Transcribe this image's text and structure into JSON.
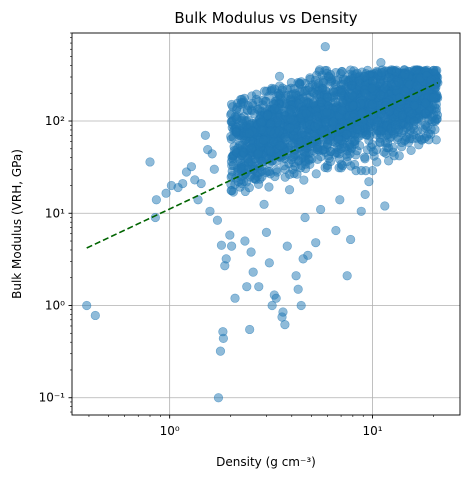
{
  "chart_data": {
    "type": "scatter",
    "title": "Bulk Modulus vs Density",
    "xlabel": "Density (g cm⁻³)",
    "ylabel": "Bulk Modulus (VRH, GPa)",
    "xscale": "log",
    "yscale": "log",
    "xlim": [
      0.33,
      27
    ],
    "ylim": [
      0.065,
      900
    ],
    "grid": true,
    "x_ticks": [
      {
        "value": 1,
        "label": "10⁰"
      },
      {
        "value": 10,
        "label": "10¹"
      }
    ],
    "y_ticks": [
      {
        "value": 0.1,
        "label": "10⁻¹"
      },
      {
        "value": 1,
        "label": "10⁰"
      },
      {
        "value": 10,
        "label": "10¹"
      },
      {
        "value": 100,
        "label": "10²"
      }
    ],
    "colors": {
      "points": "#1f77b4",
      "fit_line": "#006400",
      "grid": "#b0b0b0"
    },
    "scatter_points": [
      [
        0.39,
        1.0
      ],
      [
        0.43,
        0.78
      ],
      [
        0.8,
        36
      ],
      [
        0.86,
        14
      ],
      [
        0.85,
        9.0
      ],
      [
        0.96,
        16.5
      ],
      [
        1.02,
        20
      ],
      [
        1.1,
        19
      ],
      [
        1.16,
        21
      ],
      [
        1.21,
        28
      ],
      [
        1.28,
        32
      ],
      [
        1.33,
        23
      ],
      [
        1.38,
        14
      ],
      [
        1.43,
        21
      ],
      [
        1.5,
        70
      ],
      [
        1.54,
        49
      ],
      [
        1.58,
        10.5
      ],
      [
        1.62,
        44
      ],
      [
        1.66,
        30
      ],
      [
        1.72,
        8.4
      ],
      [
        1.78,
        0.32
      ],
      [
        1.8,
        4.5
      ],
      [
        1.83,
        0.52
      ],
      [
        1.84,
        0.44
      ],
      [
        1.87,
        2.7
      ],
      [
        1.9,
        3.2
      ],
      [
        1.74,
        0.1
      ],
      [
        1.98,
        5.8
      ],
      [
        2.02,
        4.4
      ],
      [
        2.06,
        17
      ],
      [
        2.1,
        1.2
      ],
      [
        2.18,
        22
      ],
      [
        2.25,
        30
      ],
      [
        2.3,
        46
      ],
      [
        2.35,
        5.0
      ],
      [
        2.4,
        1.6
      ],
      [
        2.48,
        0.55
      ],
      [
        2.52,
        3.8
      ],
      [
        2.58,
        2.3
      ],
      [
        2.62,
        120
      ],
      [
        2.68,
        195
      ],
      [
        2.75,
        1.6
      ],
      [
        2.85,
        36
      ],
      [
        2.92,
        12.5
      ],
      [
        3.0,
        6.2
      ],
      [
        3.1,
        2.9
      ],
      [
        3.2,
        1.0
      ],
      [
        3.28,
        1.3
      ],
      [
        3.35,
        1.2
      ],
      [
        3.48,
        305
      ],
      [
        3.58,
        0.75
      ],
      [
        3.62,
        0.85
      ],
      [
        3.7,
        0.62
      ],
      [
        3.8,
        4.4
      ],
      [
        3.9,
        18
      ],
      [
        4.1,
        27
      ],
      [
        4.2,
        2.1
      ],
      [
        4.3,
        1.5
      ],
      [
        4.45,
        1.0
      ],
      [
        4.55,
        3.2
      ],
      [
        4.65,
        9.0
      ],
      [
        4.8,
        3.5
      ],
      [
        5.05,
        60
      ],
      [
        5.25,
        4.8
      ],
      [
        5.55,
        11
      ],
      [
        5.85,
        640
      ],
      [
        6.2,
        290
      ],
      [
        6.6,
        6.5
      ],
      [
        6.9,
        14
      ],
      [
        7.2,
        250
      ],
      [
        7.5,
        2.1
      ],
      [
        7.8,
        5.2
      ],
      [
        8.1,
        350
      ],
      [
        8.4,
        330
      ],
      [
        8.8,
        10.5
      ],
      [
        9.2,
        16
      ],
      [
        9.6,
        22
      ],
      [
        10.0,
        29
      ],
      [
        10.5,
        36
      ],
      [
        11.0,
        430
      ],
      [
        11.5,
        12
      ],
      [
        12.0,
        37
      ],
      [
        12.8,
        42
      ],
      [
        13.6,
        180
      ],
      [
        14.5,
        210
      ],
      [
        15.5,
        48
      ],
      [
        16.5,
        240
      ],
      [
        17.5,
        62
      ],
      [
        18.5,
        310
      ],
      [
        19.5,
        280
      ],
      [
        20.5,
        350
      ],
      [
        21.0,
        260
      ]
    ],
    "dense_cloud": {
      "x_range": [
        2.0,
        21.0
      ],
      "y_center_at_x1": 40,
      "y_slope_log": 0.55,
      "note": "dense overlapping region of points"
    },
    "fit_line": {
      "style": "dashed",
      "x": [
        0.39,
        21.0
      ],
      "y": [
        4.2,
        260
      ]
    }
  }
}
